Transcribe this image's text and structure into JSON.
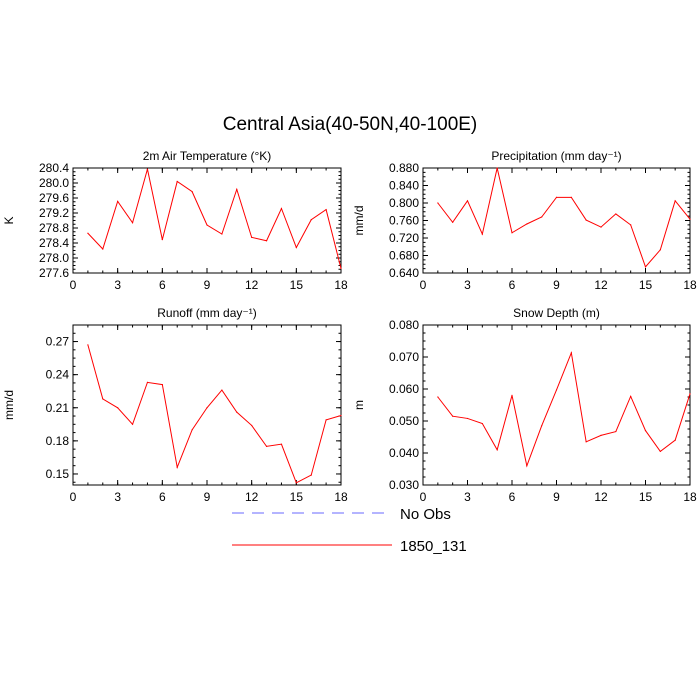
{
  "figure_title": "Central Asia(40-50N,40-100E)",
  "legend": [
    {
      "label": "No Obs",
      "color": "#6a6aff",
      "dash": true
    },
    {
      "label": "1850_131",
      "color": "#ff0000",
      "dash": false
    }
  ],
  "chart_data": [
    {
      "type": "line",
      "title": "2m Air Temperature (°K)",
      "xlabel": "",
      "ylabel": "K",
      "xlim": [
        0,
        18
      ],
      "ylim": [
        277.6,
        280.4
      ],
      "xticks": [
        "0",
        "3",
        "6",
        "9",
        "12",
        "15",
        "18"
      ],
      "yticks": [
        "277.6",
        "278.0",
        "278.4",
        "278.8",
        "279.2",
        "279.6",
        "280.0",
        "280.4"
      ],
      "series": [
        {
          "name": "1850_131",
          "color": "#ff0000",
          "x": [
            1,
            2,
            3,
            4,
            5,
            6,
            7,
            8,
            9,
            10,
            11,
            12,
            13,
            14,
            15,
            16,
            17,
            18
          ],
          "values": [
            278.66,
            278.24,
            279.51,
            278.94,
            280.37,
            278.49,
            280.04,
            279.77,
            278.88,
            278.64,
            279.83,
            278.55,
            278.46,
            279.32,
            278.28,
            279.02,
            279.29,
            277.72
          ]
        }
      ]
    },
    {
      "type": "line",
      "title": "Precipitation (mm day⁻¹)",
      "xlabel": "",
      "ylabel": "mm/d",
      "xlim": [
        0,
        18
      ],
      "ylim": [
        0.64,
        0.88
      ],
      "xticks": [
        "0",
        "3",
        "6",
        "9",
        "12",
        "15",
        "18"
      ],
      "yticks": [
        "0.640",
        "0.680",
        "0.720",
        "0.760",
        "0.800",
        "0.840",
        "0.880"
      ],
      "series": [
        {
          "name": "1850_131",
          "color": "#ff0000",
          "x": [
            1,
            2,
            3,
            4,
            5,
            6,
            7,
            8,
            9,
            10,
            11,
            12,
            13,
            14,
            15,
            16,
            17,
            18
          ],
          "values": [
            0.8,
            0.756,
            0.805,
            0.729,
            0.88,
            0.732,
            0.752,
            0.768,
            0.813,
            0.813,
            0.761,
            0.745,
            0.775,
            0.75,
            0.654,
            0.693,
            0.805,
            0.763
          ]
        }
      ]
    },
    {
      "type": "line",
      "title": "Runoff (mm day⁻¹)",
      "xlabel": "",
      "ylabel": "mm/d",
      "xlim": [
        0,
        18
      ],
      "ylim": [
        0.14,
        0.285
      ],
      "xticks": [
        "0",
        "3",
        "6",
        "9",
        "12",
        "15",
        "18"
      ],
      "yticks": [
        "0.15",
        "0.18",
        "0.21",
        "0.24",
        "0.27"
      ],
      "ytick_values": [
        0.15,
        0.18,
        0.21,
        0.24,
        0.27
      ],
      "series": [
        {
          "name": "1850_131",
          "color": "#ff0000",
          "x": [
            1,
            2,
            3,
            4,
            5,
            6,
            7,
            8,
            9,
            10,
            11,
            12,
            13,
            14,
            15,
            16,
            17,
            18
          ],
          "values": [
            0.267,
            0.218,
            0.21,
            0.195,
            0.233,
            0.231,
            0.156,
            0.19,
            0.21,
            0.226,
            0.206,
            0.194,
            0.175,
            0.177,
            0.142,
            0.149,
            0.199,
            0.203
          ]
        }
      ]
    },
    {
      "type": "line",
      "title": "Snow Depth (m)",
      "xlabel": "",
      "ylabel": "m",
      "xlim": [
        0,
        18
      ],
      "ylim": [
        0.03,
        0.08
      ],
      "xticks": [
        "0",
        "3",
        "6",
        "9",
        "12",
        "15",
        "18"
      ],
      "yticks": [
        "0.030",
        "0.040",
        "0.050",
        "0.060",
        "0.070",
        "0.080"
      ],
      "series": [
        {
          "name": "1850_131",
          "color": "#ff0000",
          "x": [
            1,
            2,
            3,
            4,
            5,
            6,
            7,
            8,
            9,
            10,
            11,
            12,
            13,
            14,
            15,
            16,
            17,
            18
          ],
          "values": [
            0.0575,
            0.0515,
            0.0508,
            0.0492,
            0.041,
            0.058,
            0.036,
            0.0485,
            0.0597,
            0.0713,
            0.0435,
            0.0455,
            0.0467,
            0.0577,
            0.047,
            0.0405,
            0.044,
            0.0585
          ]
        }
      ]
    }
  ]
}
